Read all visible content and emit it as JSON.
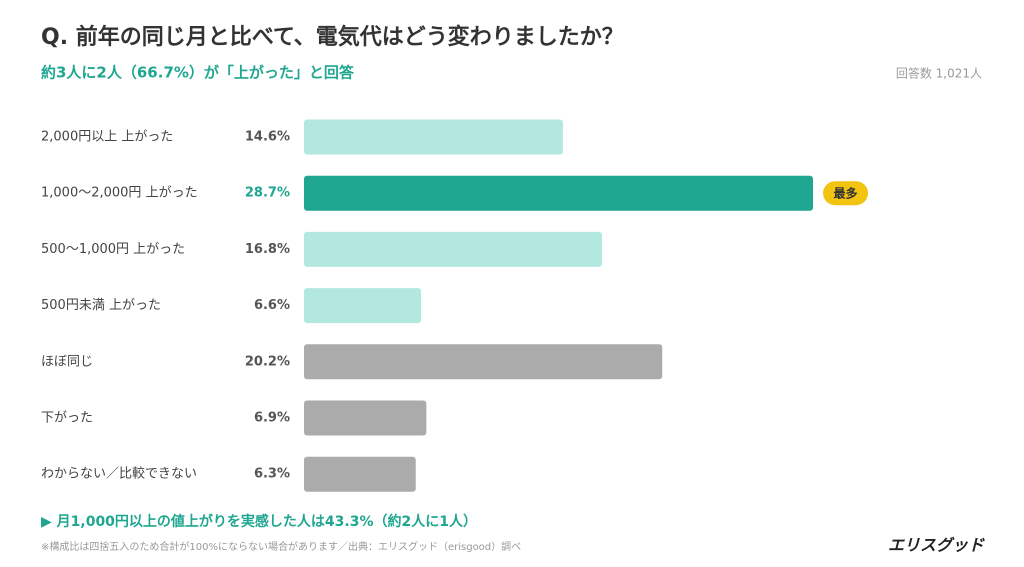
{
  "chart_data": {
    "type": "bar",
    "title": "Q. 前年の同じ月と比べて、電気代はどう変わりましたか？",
    "subtitle": "約3人に2人（66.7%）が「上がった」と回答",
    "respondents": "回答数 1,021人",
    "categories": [
      "2,000円以上 上がった",
      "1,000〜2,000円 上がった",
      "500〜1,000円 上がった",
      "500円未満 上がった",
      "ほぼ同じ",
      "下がった",
      "わからない／比較できない"
    ],
    "values": [
      14.6,
      28.7,
      16.8,
      6.6,
      20.2,
      6.9,
      6.3
    ],
    "value_labels": [
      "14.6%",
      "28.7%",
      "16.8%",
      "6.6%",
      "20.2%",
      "6.9%",
      "6.3%"
    ],
    "colors": [
      "#b3e8e1",
      "#1fa690",
      "#b3e8e1",
      "#b3e8e1",
      "#ababab",
      "#ababab",
      "#ababab"
    ],
    "highlight": {
      "index": 1,
      "label": "最多",
      "color": "#f2c40f"
    },
    "note": "▶ 月1,000円以上の値上がりを実感した人は43.3%（約2人に1人）",
    "footnote": "※構成比は四捨五入のため合計が100%にならない場合があります／出典：エリスグッド（erisgood）調べ",
    "brand": "エリスグッド"
  }
}
